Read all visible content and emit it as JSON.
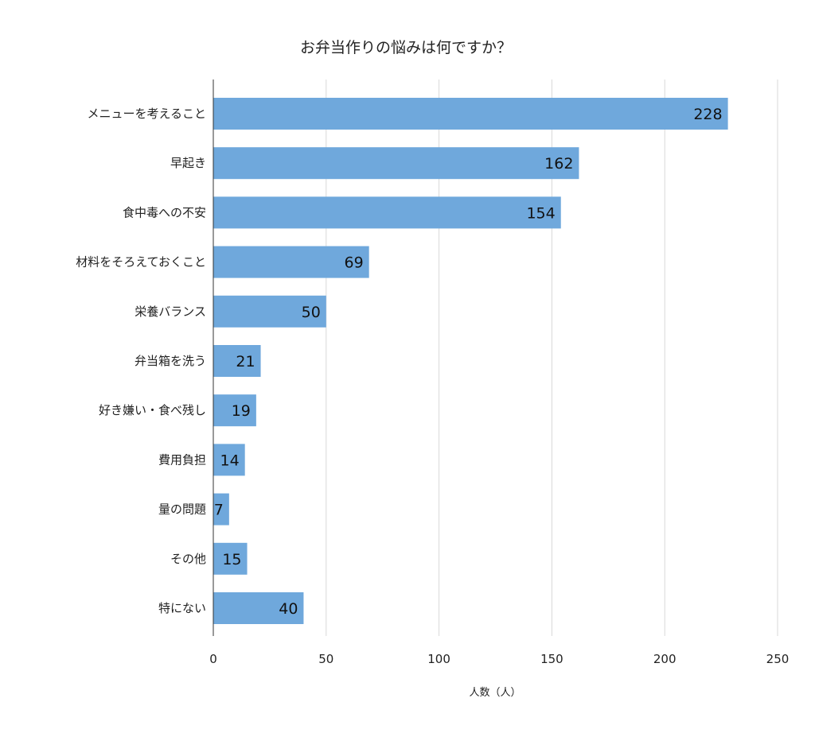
{
  "chart_data": {
    "type": "bar",
    "orientation": "horizontal",
    "title": "お弁当作りの悩みは何ですか？",
    "xlabel": "人数（人）",
    "ylabel": "",
    "xlim": [
      0,
      250
    ],
    "xticks": [
      0,
      50,
      100,
      150,
      200,
      250
    ],
    "grid": true,
    "legend": "none",
    "bar_color": "#6fa8dc",
    "categories": [
      "メニューを考えること",
      "早起き",
      "食中毒への不安",
      "材料をそろえておくこと",
      "栄養バランス",
      "弁当箱を洗う",
      "好き嫌い・食べ残し",
      "費用負担",
      "量の問題",
      "その他",
      "特にない"
    ],
    "values": [
      228,
      162,
      154,
      69,
      50,
      21,
      19,
      14,
      7,
      15,
      40
    ]
  }
}
